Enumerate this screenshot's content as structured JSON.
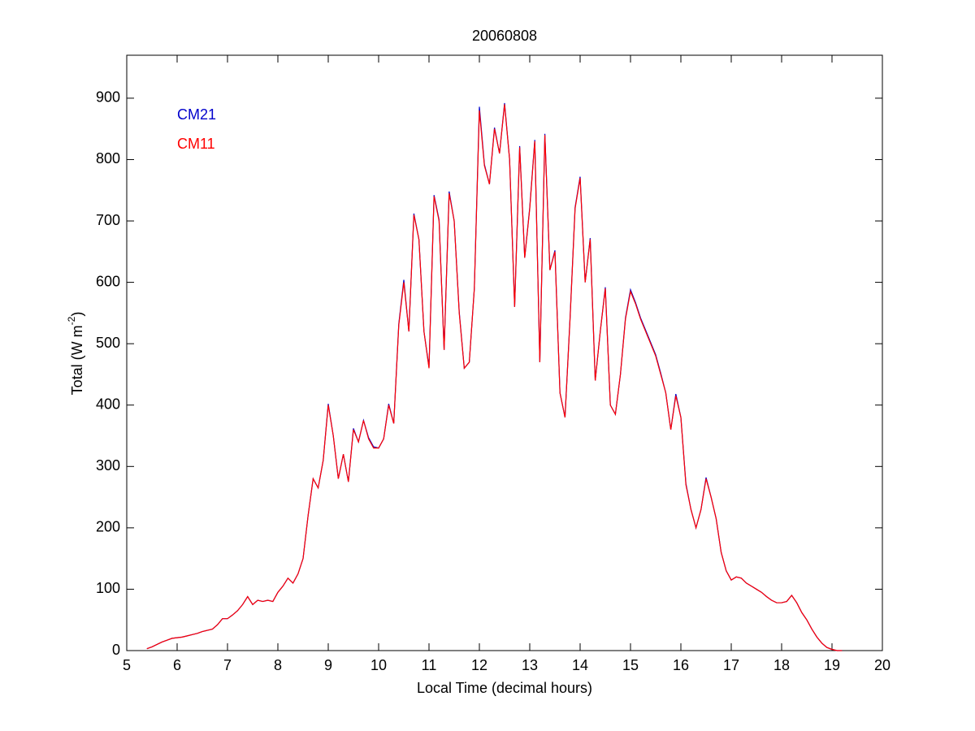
{
  "chart_data": {
    "type": "line",
    "title": "20060808",
    "x_label": "Local Time (decimal hours)",
    "y_label": {
      "text": "Total (W m",
      "superscript": "-2",
      "suffix": ")"
    },
    "xlim": [
      5,
      20
    ],
    "xticks": [
      5,
      6,
      7,
      8,
      9,
      10,
      11,
      12,
      13,
      14,
      15,
      16,
      17,
      18,
      19,
      20
    ],
    "ylim": [
      0,
      970
    ],
    "yticks": [
      0,
      100,
      200,
      300,
      400,
      500,
      600,
      700,
      800,
      900
    ],
    "grid": false,
    "legend": "upper left",
    "x": [
      5.4,
      5.5,
      5.6,
      5.7,
      5.8,
      5.9,
      6.0,
      6.1,
      6.2,
      6.3,
      6.4,
      6.5,
      6.6,
      6.7,
      6.8,
      6.9,
      7.0,
      7.1,
      7.2,
      7.3,
      7.4,
      7.5,
      7.6,
      7.7,
      7.8,
      7.9,
      8.0,
      8.1,
      8.2,
      8.3,
      8.4,
      8.5,
      8.6,
      8.7,
      8.8,
      8.9,
      9.0,
      9.1,
      9.2,
      9.3,
      9.4,
      9.5,
      9.6,
      9.7,
      9.8,
      9.9,
      10.0,
      10.1,
      10.2,
      10.3,
      10.4,
      10.5,
      10.6,
      10.7,
      10.8,
      10.9,
      11.0,
      11.1,
      11.2,
      11.3,
      11.4,
      11.5,
      11.6,
      11.7,
      11.8,
      11.9,
      12.0,
      12.1,
      12.2,
      12.3,
      12.4,
      12.5,
      12.6,
      12.7,
      12.8,
      12.9,
      13.0,
      13.1,
      13.2,
      13.3,
      13.4,
      13.5,
      13.6,
      13.7,
      13.8,
      13.9,
      14.0,
      14.1,
      14.2,
      14.3,
      14.4,
      14.5,
      14.6,
      14.7,
      14.8,
      14.9,
      15.0,
      15.1,
      15.2,
      15.3,
      15.4,
      15.5,
      15.6,
      15.7,
      15.8,
      15.9,
      16.0,
      16.1,
      16.2,
      16.3,
      16.4,
      16.5,
      16.6,
      16.7,
      16.8,
      16.9,
      17.0,
      17.1,
      17.2,
      17.3,
      17.4,
      17.5,
      17.6,
      17.7,
      17.8,
      17.9,
      18.0,
      18.1,
      18.2,
      18.3,
      18.4,
      18.5,
      18.6,
      18.7,
      18.8,
      18.9,
      19.0,
      19.1,
      19.2
    ],
    "series": [
      {
        "name": "CM21",
        "color": "#0000cc",
        "values": [
          3,
          6,
          10,
          14,
          17,
          20,
          21,
          22,
          24,
          26,
          28,
          31,
          33,
          35,
          42,
          52,
          52,
          58,
          65,
          75,
          88,
          75,
          82,
          80,
          82,
          80,
          95,
          105,
          118,
          110,
          125,
          150,
          220,
          280,
          265,
          310,
          402,
          350,
          280,
          320,
          275,
          362,
          340,
          375,
          347,
          332,
          330,
          345,
          402,
          370,
          532,
          604,
          520,
          712,
          670,
          520,
          462,
          742,
          702,
          490,
          748,
          700,
          552,
          460,
          470,
          590,
          886,
          792,
          760,
          852,
          810,
          892,
          800,
          560,
          822,
          640,
          722,
          832,
          470,
          842,
          620,
          652,
          420,
          380,
          542,
          722,
          772,
          600,
          672,
          440,
          520,
          592,
          400,
          385,
          450,
          542,
          588,
          567,
          542,
          522,
          502,
          482,
          452,
          420,
          360,
          418,
          380,
          272,
          230,
          200,
          230,
          282,
          250,
          215,
          160,
          130,
          115,
          120,
          118,
          110,
          105,
          100,
          95,
          88,
          82,
          78,
          78,
          80,
          90,
          78,
          62,
          50,
          35,
          22,
          12,
          5,
          2,
          0,
          0
        ]
      },
      {
        "name": "CM11",
        "color": "#ff0000",
        "values": [
          3,
          6,
          10,
          14,
          17,
          20,
          21,
          22,
          24,
          26,
          28,
          31,
          33,
          35,
          42,
          52,
          52,
          58,
          65,
          75,
          88,
          75,
          82,
          80,
          82,
          80,
          95,
          105,
          118,
          110,
          125,
          150,
          220,
          280,
          265,
          310,
          400,
          350,
          280,
          320,
          275,
          360,
          340,
          375,
          345,
          330,
          330,
          345,
          400,
          370,
          530,
          600,
          520,
          710,
          670,
          520,
          460,
          740,
          700,
          490,
          745,
          700,
          550,
          460,
          470,
          590,
          880,
          790,
          760,
          850,
          810,
          890,
          800,
          560,
          820,
          640,
          720,
          830,
          470,
          840,
          620,
          650,
          420,
          380,
          540,
          720,
          770,
          600,
          670,
          440,
          520,
          590,
          400,
          385,
          450,
          540,
          585,
          565,
          540,
          520,
          500,
          480,
          450,
          420,
          360,
          415,
          380,
          270,
          230,
          200,
          230,
          280,
          250,
          215,
          160,
          130,
          115,
          120,
          118,
          110,
          105,
          100,
          95,
          88,
          82,
          78,
          78,
          80,
          90,
          78,
          62,
          50,
          35,
          22,
          12,
          5,
          2,
          0,
          0
        ]
      }
    ]
  }
}
